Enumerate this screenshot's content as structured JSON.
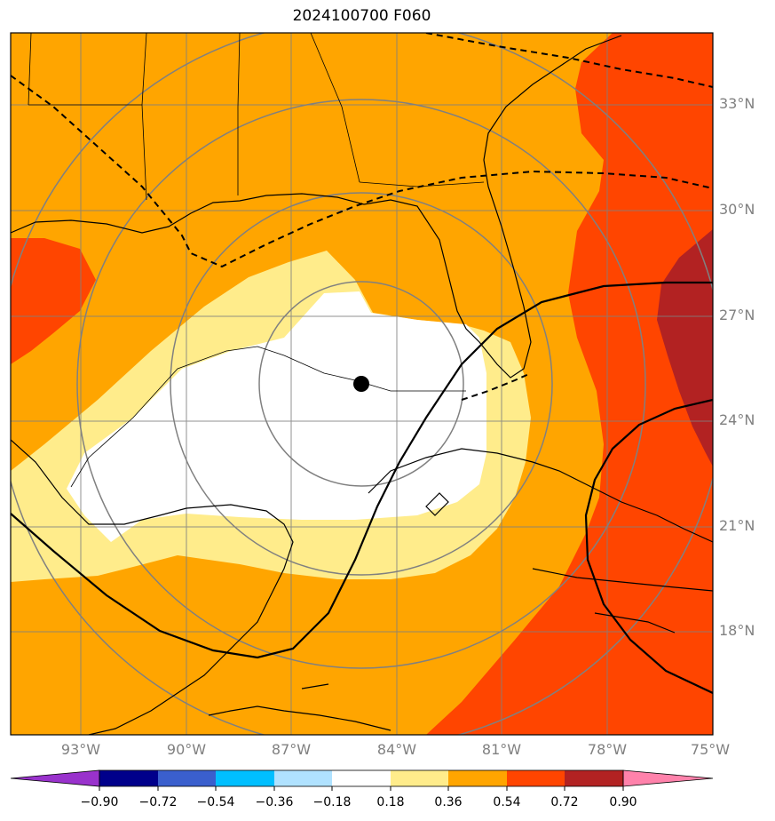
{
  "title": "2024100700 F060",
  "axes": {
    "lat_labels": [
      "33°N",
      "30°N",
      "27°N",
      "24°N",
      "21°N",
      "18°N"
    ],
    "lon_labels": [
      "93°W",
      "90°W",
      "87°W",
      "84°W",
      "81°W",
      "78°W",
      "75°W"
    ]
  },
  "colorbar": {
    "labels": [
      "−0.90",
      "−0.72",
      "−0.54",
      "−0.36",
      "−0.18",
      "0.18",
      "0.36",
      "0.54",
      "0.72",
      "0.90"
    ],
    "colors": [
      "#9932cc",
      "#00008b",
      "#3a5fcd",
      "#00bfff",
      "#b0e2ff",
      "#ffffff",
      "#ffec8b",
      "#ffa500",
      "#ff4500",
      "#b22222",
      "#ff82ab"
    ]
  },
  "map": {
    "field_colors": {
      "white": "#ffffff",
      "yellow": "#ffec8b",
      "orange": "#ffa500",
      "red": "#ff4500",
      "darkred": "#b22222"
    },
    "storm_marker_color": "#000000"
  }
}
